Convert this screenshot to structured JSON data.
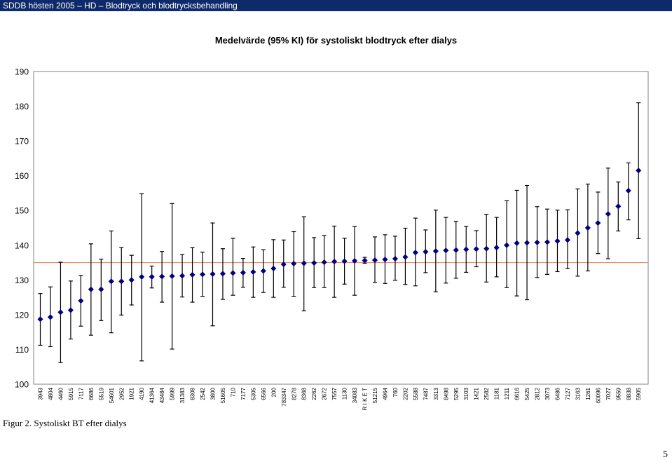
{
  "header": {
    "title": "SDDB hösten 2005 – HD – Blodtryck och blodtrycksbehandling"
  },
  "caption": "Figur 2.  Systoliskt BT efter dialys",
  "page_number": "5",
  "colors": {
    "marker": "#000080",
    "errorbar": "#000000",
    "plot_bg": "#ffffff",
    "reference_line": "#ee8866",
    "header_bg": "#0f2a6b"
  },
  "chart_data": {
    "type": "scatter",
    "title": "Medelvärde (95% KI) för systoliskt blodtryck efter dialys",
    "xlabel": "",
    "ylabel": "",
    "ylim": [
      100,
      190
    ],
    "yticks": [
      100,
      110,
      120,
      130,
      140,
      150,
      160,
      170,
      180,
      190
    ],
    "grid": false,
    "reference_line": 135,
    "categories": [
      "3943",
      "4804",
      "4460",
      "5915",
      "7117",
      "6686",
      "5519",
      "54601",
      "2952",
      "1921",
      "4190",
      "41364",
      "43484",
      "5999",
      "31383",
      "8308",
      "2542",
      "3800",
      "51605",
      "710",
      "7177",
      "5305",
      "6566",
      "200",
      "783347",
      "8278",
      "8368",
      "2262",
      "2672",
      "7557",
      "1130",
      "34083",
      "R I K E T",
      "51215",
      "4964",
      "760",
      "2202",
      "5588",
      "7487",
      "3313",
      "8498",
      "5295",
      "3103",
      "1421",
      "2582",
      "1181",
      "1211",
      "6616",
      "5425",
      "2812",
      "3073",
      "6486",
      "7127",
      "3163",
      "1261",
      "60096",
      "7027",
      "9559",
      "8838",
      "5905"
    ],
    "mean": [
      118.7,
      119.3,
      120.7,
      121.3,
      124,
      127.3,
      127.3,
      129.6,
      129.6,
      130,
      130.9,
      130.9,
      131,
      131.1,
      131.2,
      131.5,
      131.6,
      131.7,
      131.8,
      132,
      132.1,
      132.3,
      132.6,
      133.3,
      134.5,
      134.7,
      134.8,
      134.9,
      135.1,
      135.3,
      135.4,
      135.5,
      135.6,
      135.7,
      135.9,
      136.1,
      136.6,
      137.9,
      138.1,
      138.3,
      138.5,
      138.6,
      138.8,
      138.9,
      139,
      139.3,
      140,
      140.6,
      140.7,
      140.8,
      140.9,
      141.2,
      141.5,
      143.5,
      145,
      146.4,
      149,
      151.2,
      155.7,
      161.5
    ],
    "lower": [
      111.2,
      110.8,
      106.2,
      113,
      116.7,
      114.1,
      118.3,
      114.8,
      119.9,
      122.8,
      106.7,
      127.7,
      123.6,
      110.1,
      125.1,
      123.6,
      125.3,
      116.8,
      124.4,
      125.6,
      127.9,
      125,
      126.4,
      125,
      127.9,
      125.3,
      121.1,
      127.8,
      127.8,
      125,
      128.8,
      125.6,
      134.8,
      129.3,
      129,
      129.9,
      128.7,
      128.3,
      132.1,
      126.6,
      129.1,
      130.5,
      132.2,
      133.8,
      129.4,
      130.9,
      127.8,
      125.4,
      124.3,
      130.7,
      131.6,
      132.4,
      133.3,
      131.1,
      132.6,
      137.6,
      136.1,
      144.1,
      147.3,
      141.9
    ],
    "upper": [
      126.1,
      128,
      135.1,
      129.7,
      131.3,
      140.4,
      136,
      144.1,
      139.3,
      137.1,
      154.8,
      134,
      138.2,
      152,
      137.3,
      139.3,
      138,
      146.4,
      139,
      142,
      136.2,
      139.5,
      138.7,
      141.6,
      141.5,
      143.9,
      148.2,
      142.2,
      142.8,
      145.5,
      142,
      145.4,
      136.5,
      142.4,
      143,
      142.6,
      144.9,
      147.8,
      144.4,
      150.1,
      148,
      146.9,
      145.4,
      144.2,
      148.9,
      148,
      152.8,
      155.8,
      157.2,
      151.1,
      150.4,
      150.1,
      150.2,
      156.2,
      157.6,
      155.3,
      162.2,
      158.2,
      163.7,
      181
    ]
  }
}
